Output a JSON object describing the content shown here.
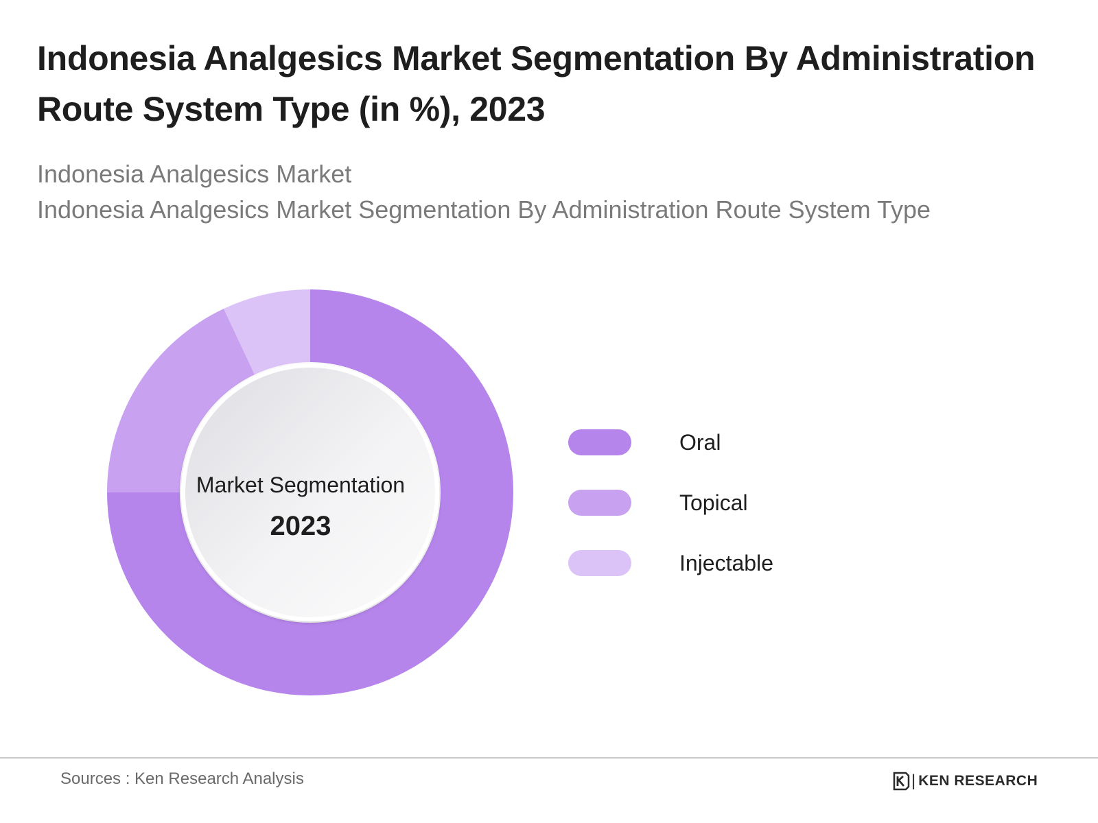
{
  "title": "Indonesia Analgesics Market Segmentation By Administration Route System Type  (in %), 2023",
  "subtitle": {
    "line1": "Indonesia Analgesics Market",
    "line2": "Indonesia Analgesics Market Segmentation By Administration Route System Type"
  },
  "chart_data": {
    "type": "pie",
    "style": "donut",
    "categories": [
      "Oral",
      "Topical",
      "Injectable"
    ],
    "values": [
      75,
      18,
      7
    ],
    "colors": [
      "#b685ec",
      "#c8a1f0",
      "#dcc3f7"
    ],
    "center_label": "Market Segmentation",
    "center_year": "2023",
    "legend_position": "right"
  },
  "legend": [
    {
      "label": "Oral",
      "color": "#b685ec"
    },
    {
      "label": "Topical",
      "color": "#c8a1f0"
    },
    {
      "label": "Injectable",
      "color": "#dcc3f7"
    }
  ],
  "footer": {
    "source": "Sources : Ken Research Analysis",
    "brand": "KEN RESEARCH",
    "brand_icon": "ken-research-logo-icon"
  }
}
